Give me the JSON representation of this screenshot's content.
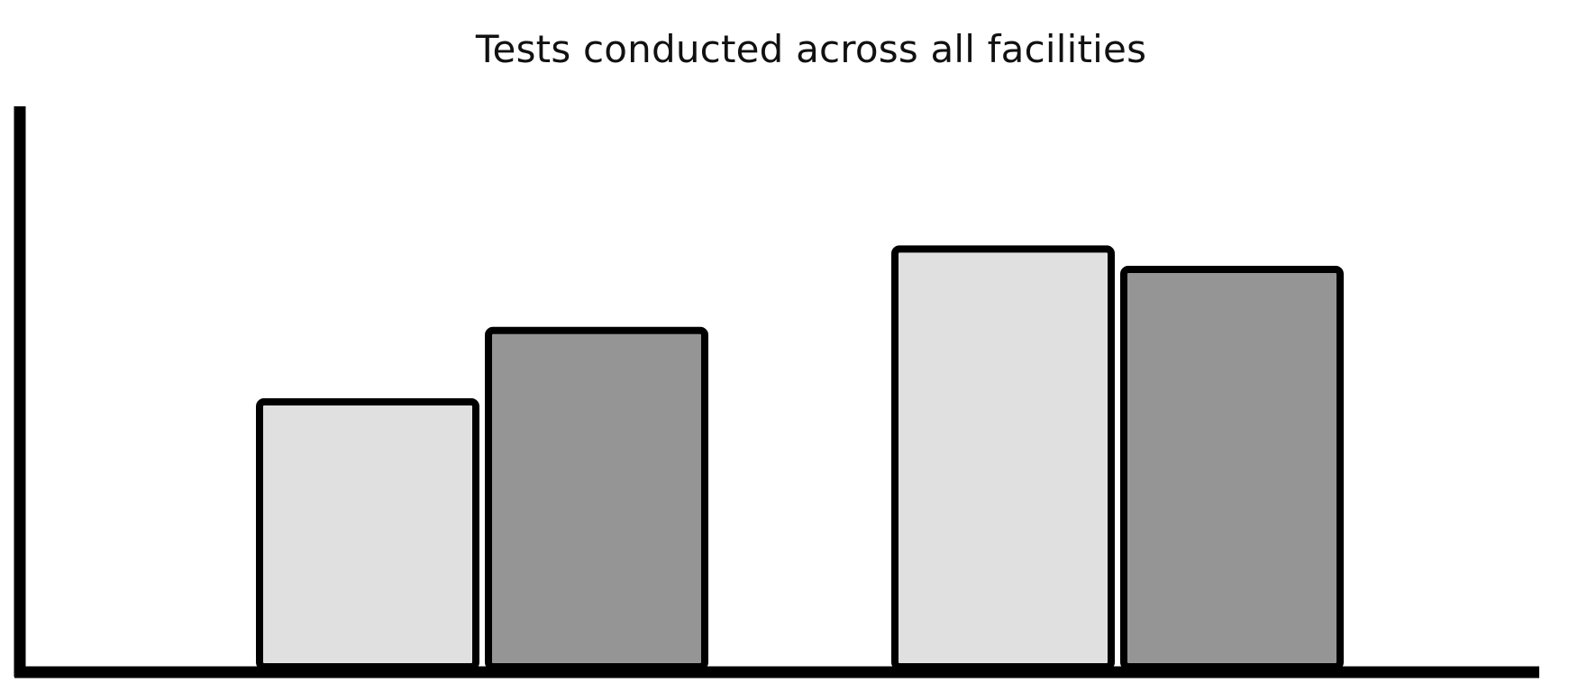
{
  "chart_data": {
    "type": "bar",
    "title": "Tests conducted across all facilities",
    "xlabel": "",
    "ylabel": "",
    "categories": [
      "",
      ""
    ],
    "series": [
      {
        "color": "#e0e0e0",
        "values": [
          52,
          82
        ]
      },
      {
        "color": "#959595",
        "values": [
          66,
          78
        ]
      }
    ],
    "ylim": [
      0,
      110
    ],
    "grid": false,
    "legend": "none",
    "stroke_color": "#000000"
  }
}
